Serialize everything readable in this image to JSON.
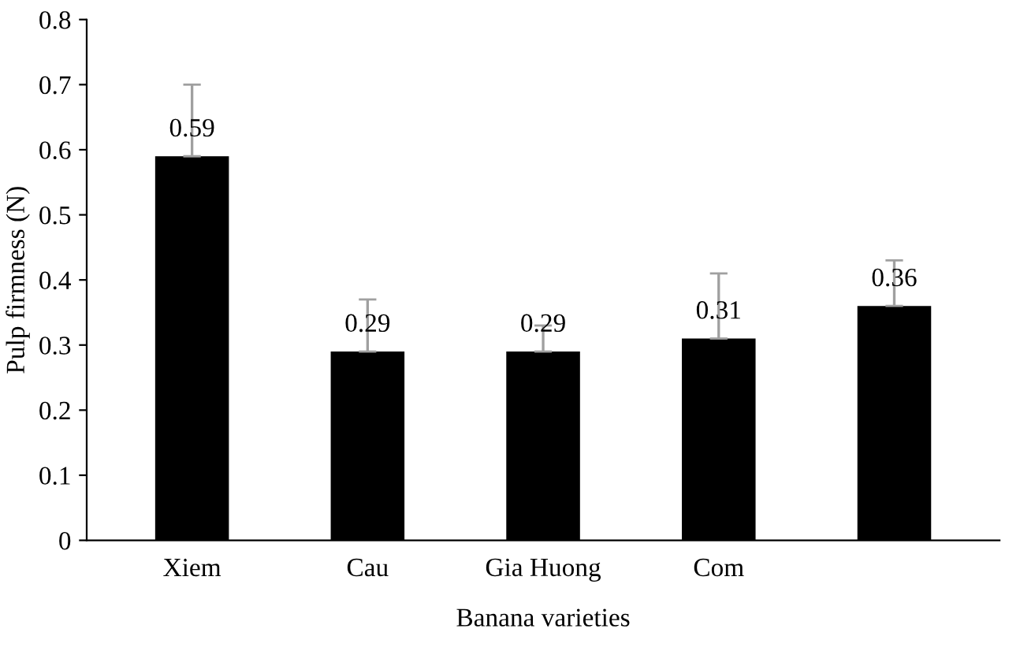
{
  "chart_data": {
    "type": "bar",
    "xlabel": "Banana varieties",
    "ylabel": "Pulp firmness (N)",
    "categories": [
      "Xiem",
      "Cau",
      "Gia Huong",
      "Com",
      null
    ],
    "values": [
      0.59,
      0.29,
      0.29,
      0.31,
      0.36
    ],
    "errors": [
      [
        0.59,
        0.7
      ],
      [
        0.29,
        0.37
      ],
      [
        0.29,
        0.33
      ],
      [
        0.31,
        0.41
      ],
      [
        0.36,
        0.43
      ]
    ],
    "color": "#000000",
    "ylim": [
      0,
      0.8
    ],
    "yticks": [
      {
        "value": 0,
        "label": "0"
      },
      0.1,
      0.2,
      0.3,
      0.4,
      0.5,
      0.6,
      0.7,
      0.8
    ],
    "data_labels": true,
    "grid": false,
    "legend": false
  }
}
